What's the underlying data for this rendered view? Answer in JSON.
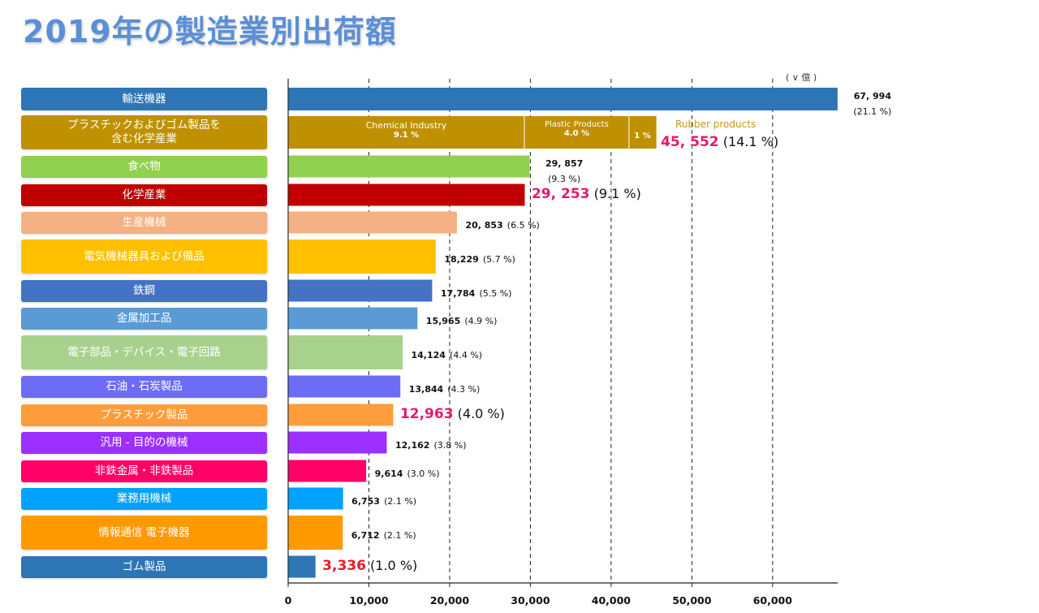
{
  "title": "2019年の製造業別出荷額",
  "chart_data": {
    "type": "bar",
    "orientation": "horizontal",
    "unit": "( ∨ 億 )",
    "xlim": [
      0,
      67994
    ],
    "x_ticks": [
      "0",
      "10,000",
      "20,000",
      "30,000",
      "40,000",
      "50,000",
      "60,000"
    ],
    "grid": "vertical dashed",
    "categories": [
      {
        "name": "輸送機器",
        "value": 67994,
        "value_label": "67, 994",
        "pct": "(21.1 %)",
        "color": "#2e75b6",
        "label_style": "small-stacked"
      },
      {
        "name": "プラスチックおよびゴム製品を\n含む化学産業",
        "value": 45552,
        "value_label": "45, 552",
        "pct": "(14.1 %)",
        "color": "#bf9000",
        "label_style": "big",
        "segments": [
          {
            "name": "Chemical Industry",
            "pct": "9.1 %",
            "value": 29253
          },
          {
            "name": "Plastic Products",
            "pct": "4.0 %",
            "value": 12963
          },
          {
            "name": "Rubber products",
            "pct": "1 %",
            "value": 3336
          }
        ]
      },
      {
        "name": "食べ物",
        "value": 29857,
        "value_label": "29, 857",
        "pct": "(9.3 %)",
        "color": "#92d050",
        "label_style": "small-stacked"
      },
      {
        "name": "化学産業",
        "value": 29253,
        "value_label": "29, 253",
        "pct": "(9.1 %)",
        "color": "#c00000",
        "label_style": "big"
      },
      {
        "name": "生産機械",
        "value": 20853,
        "value_label": "20, 853",
        "pct": "(6.5 %)",
        "color": "#f4b183",
        "label_style": "small"
      },
      {
        "name": "電気機械器具および備品",
        "value": 18229,
        "value_label": "18,229",
        "pct": "(5.7 %)",
        "color": "#ffc000",
        "label_style": "small"
      },
      {
        "name": "鉄鋼",
        "value": 17784,
        "value_label": "17,784",
        "pct": "(5.5 %)",
        "color": "#4472c4",
        "label_style": "small"
      },
      {
        "name": "金属加工品",
        "value": 15965,
        "value_label": "15,965",
        "pct": "(4.9 %)",
        "color": "#5b9bd5",
        "label_style": "small"
      },
      {
        "name": "電子部品・デバイス・電子回路",
        "value": 14124,
        "value_label": "14,124",
        "pct": "(4.4 %)",
        "color": "#a9d18e",
        "label_style": "small"
      },
      {
        "name": "石油・石炭製品",
        "value": 13844,
        "value_label": "13,844",
        "pct": "(4.3 %)",
        "color": "#6c6cf7",
        "label_style": "small"
      },
      {
        "name": "プラスチック製品",
        "value": 12963,
        "value_label": "12,963",
        "pct": "(4.0 %)",
        "color": "#ff9d3c",
        "label_style": "big"
      },
      {
        "name": "汎用 - 目的の機械",
        "value": 12162,
        "value_label": "12,162",
        "pct": "(3.8 %)",
        "color": "#9b30ff",
        "label_style": "small"
      },
      {
        "name": "非鉄金属・非鉄製品",
        "value": 9614,
        "value_label": "9,614",
        "pct": "(3.0 %)",
        "color": "#ff0066",
        "label_style": "small"
      },
      {
        "name": "業務用機械",
        "value": 6753,
        "value_label": "6,753",
        "pct": "(2.1 %)",
        "color": "#00a2ff",
        "label_style": "small"
      },
      {
        "name": "情報通信 電子機器",
        "value": 6712,
        "value_label": "6,712",
        "pct": "(2.1 %)",
        "color": "#ff9900",
        "label_style": "small"
      },
      {
        "name": "ゴム製品",
        "value": 3336,
        "value_label": "3,336",
        "pct": "(1.0 %)",
        "color": "#2e75b6",
        "label_style": "big-red"
      }
    ]
  }
}
